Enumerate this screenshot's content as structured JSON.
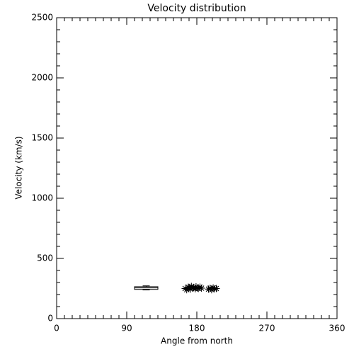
{
  "chart_data": {
    "type": "scatter",
    "title": "Velocity distribution",
    "xlabel": "Angle from north",
    "ylabel": "Velocity (km/s)",
    "x": [
      165,
      167,
      169,
      170,
      172,
      173,
      175,
      176,
      178,
      179,
      181,
      182,
      184,
      186,
      195,
      197,
      199,
      201,
      203,
      205
    ],
    "values": [
      250,
      240,
      262,
      255,
      245,
      268,
      252,
      258,
      247,
      265,
      255,
      250,
      262,
      253,
      245,
      252,
      240,
      255,
      248,
      250
    ],
    "box": {
      "x": [
        100,
        130
      ],
      "whislo": 238,
      "q1": 243,
      "med": 255,
      "q3": 265,
      "whishi": 272
    },
    "color": "#000000",
    "xlim": [
      0,
      360
    ],
    "xticks": [
      0,
      90,
      180,
      270,
      360
    ],
    "xminor_step": 10,
    "ylim": [
      0,
      2500
    ],
    "yticks": [
      0,
      500,
      1000,
      1500,
      2000,
      2500
    ],
    "yminor_step": 100
  }
}
